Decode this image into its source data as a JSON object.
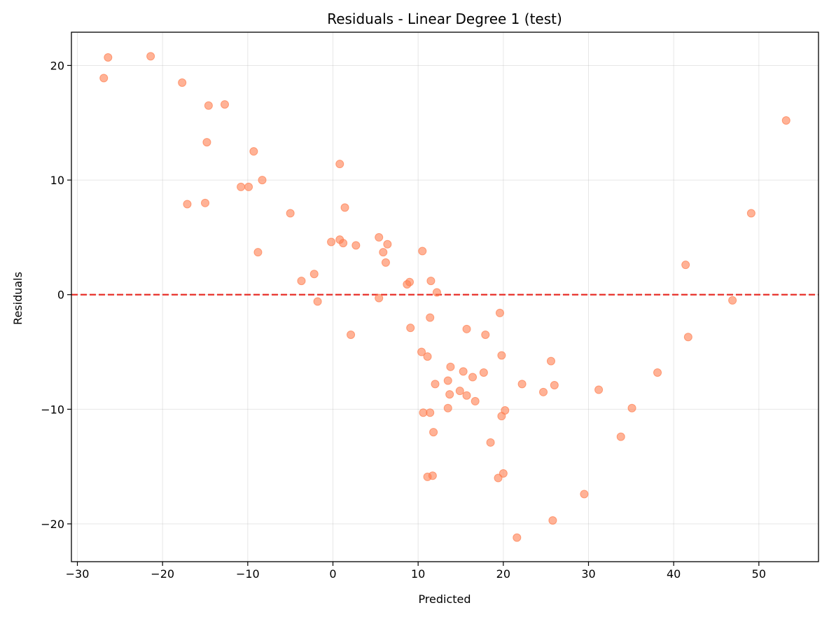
{
  "chart_data": {
    "type": "scatter",
    "title": "Residuals - Linear Degree 1 (test)",
    "xlabel": "Predicted",
    "ylabel": "Residuals",
    "xlim": [
      -30.7,
      57
    ],
    "ylim": [
      -23.3,
      22.9
    ],
    "xticks": [
      -30,
      -20,
      -10,
      0,
      10,
      20,
      30,
      40,
      50
    ],
    "yticks": [
      -20,
      -10,
      0,
      10,
      20
    ],
    "tick_labels_x": [
      "−30",
      "−20",
      "−10",
      "0",
      "10",
      "20",
      "30",
      "40",
      "50"
    ],
    "tick_labels_y": [
      "−20",
      "−10",
      "0",
      "10",
      "20"
    ],
    "grid": true,
    "point_color": "#ff7f50",
    "reference_line": {
      "y": 0,
      "color": "#e8302a",
      "style": "dashed"
    },
    "points": [
      {
        "x": -26.9,
        "y": 18.9
      },
      {
        "x": -26.4,
        "y": 20.7
      },
      {
        "x": -21.4,
        "y": 20.8
      },
      {
        "x": -17.7,
        "y": 18.5
      },
      {
        "x": -17.1,
        "y": 7.9
      },
      {
        "x": -15.0,
        "y": 8.0
      },
      {
        "x": -14.8,
        "y": 13.3
      },
      {
        "x": -14.6,
        "y": 16.5
      },
      {
        "x": -12.7,
        "y": 16.6
      },
      {
        "x": -10.8,
        "y": 9.4
      },
      {
        "x": -9.9,
        "y": 9.4
      },
      {
        "x": -9.3,
        "y": 12.5
      },
      {
        "x": -8.8,
        "y": 3.7
      },
      {
        "x": -8.3,
        "y": 10.0
      },
      {
        "x": -5.0,
        "y": 7.1
      },
      {
        "x": -3.7,
        "y": 1.2
      },
      {
        "x": -2.2,
        "y": 1.8
      },
      {
        "x": -1.8,
        "y": -0.6
      },
      {
        "x": -0.2,
        "y": 4.6
      },
      {
        "x": 0.8,
        "y": 4.8
      },
      {
        "x": 0.8,
        "y": 11.4
      },
      {
        "x": 1.2,
        "y": 4.5
      },
      {
        "x": 1.4,
        "y": 7.6
      },
      {
        "x": 2.1,
        "y": -3.5
      },
      {
        "x": 2.7,
        "y": 4.3
      },
      {
        "x": 5.4,
        "y": 5.0
      },
      {
        "x": 5.4,
        "y": -0.3
      },
      {
        "x": 5.9,
        "y": 3.7
      },
      {
        "x": 6.2,
        "y": 2.8
      },
      {
        "x": 6.4,
        "y": 4.4
      },
      {
        "x": 8.7,
        "y": 0.9
      },
      {
        "x": 9.0,
        "y": 1.1
      },
      {
        "x": 9.1,
        "y": -2.9
      },
      {
        "x": 10.4,
        "y": -5.0
      },
      {
        "x": 10.5,
        "y": 3.8
      },
      {
        "x": 10.6,
        "y": -10.3
      },
      {
        "x": 11.1,
        "y": -5.4
      },
      {
        "x": 11.1,
        "y": -15.9
      },
      {
        "x": 11.4,
        "y": -2.0
      },
      {
        "x": 11.4,
        "y": -10.3
      },
      {
        "x": 11.5,
        "y": 1.2
      },
      {
        "x": 11.7,
        "y": -15.8
      },
      {
        "x": 11.8,
        "y": -12.0
      },
      {
        "x": 12.0,
        "y": -7.8
      },
      {
        "x": 12.2,
        "y": 0.2
      },
      {
        "x": 13.5,
        "y": -7.5
      },
      {
        "x": 13.5,
        "y": -9.9
      },
      {
        "x": 13.7,
        "y": -8.7
      },
      {
        "x": 13.8,
        "y": -6.3
      },
      {
        "x": 14.9,
        "y": -8.4
      },
      {
        "x": 15.3,
        "y": -6.7
      },
      {
        "x": 15.7,
        "y": -3.0
      },
      {
        "x": 15.7,
        "y": -8.8
      },
      {
        "x": 16.4,
        "y": -7.2
      },
      {
        "x": 16.7,
        "y": -9.3
      },
      {
        "x": 17.7,
        "y": -6.8
      },
      {
        "x": 17.9,
        "y": -3.5
      },
      {
        "x": 18.5,
        "y": -12.9
      },
      {
        "x": 19.4,
        "y": -16.0
      },
      {
        "x": 19.6,
        "y": -1.6
      },
      {
        "x": 19.8,
        "y": -5.3
      },
      {
        "x": 19.8,
        "y": -10.6
      },
      {
        "x": 20.0,
        "y": -15.6
      },
      {
        "x": 20.2,
        "y": -10.1
      },
      {
        "x": 21.6,
        "y": -21.2
      },
      {
        "x": 22.2,
        "y": -7.8
      },
      {
        "x": 24.7,
        "y": -8.5
      },
      {
        "x": 25.6,
        "y": -5.8
      },
      {
        "x": 25.8,
        "y": -19.7
      },
      {
        "x": 26.0,
        "y": -7.9
      },
      {
        "x": 29.5,
        "y": -17.4
      },
      {
        "x": 31.2,
        "y": -8.3
      },
      {
        "x": 33.8,
        "y": -12.4
      },
      {
        "x": 35.1,
        "y": -9.9
      },
      {
        "x": 38.1,
        "y": -6.8
      },
      {
        "x": 41.4,
        "y": 2.6
      },
      {
        "x": 41.7,
        "y": -3.7
      },
      {
        "x": 46.9,
        "y": -0.5
      },
      {
        "x": 49.1,
        "y": 7.1
      },
      {
        "x": 53.2,
        "y": 15.2
      }
    ]
  }
}
